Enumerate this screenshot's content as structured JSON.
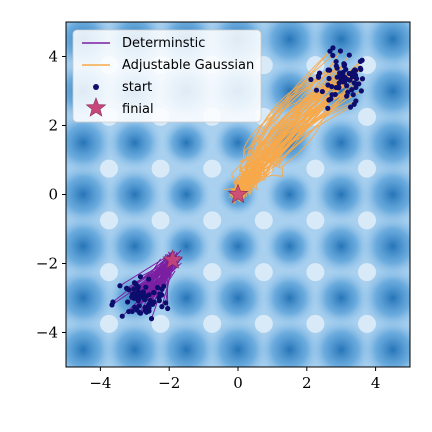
{
  "chart_data": {
    "type": "line",
    "title": "",
    "xlabel": "",
    "ylabel": "",
    "xlim": [
      -5,
      5
    ],
    "ylim": [
      -5,
      5
    ],
    "xticks": [
      -4,
      -2,
      0,
      2,
      4
    ],
    "yticks": [
      -4,
      -2,
      0,
      2,
      4
    ],
    "xtick_labels": [
      "−4",
      "−2",
      "0",
      "2",
      "4"
    ],
    "ytick_labels": [
      "−4",
      "−2",
      "0",
      "2",
      "4"
    ],
    "grid": false,
    "background": {
      "kind": "heatmap",
      "description_free": true,
      "pattern": "periodic wells",
      "well_spacing": 1.5,
      "colormap": [
        "#ffffff",
        "#1f6fb4"
      ]
    },
    "legend": {
      "position": "top-left",
      "entries": [
        {
          "label": "Determinstic",
          "marker": "line",
          "color": "#7b1fa2"
        },
        {
          "label": "Adjustable Gaussian",
          "marker": "line",
          "color": "#f7a94a"
        },
        {
          "label": "start",
          "marker": "dot",
          "color": "#0d0d6e"
        },
        {
          "label": "finial",
          "marker": "star",
          "color": "#c9467a"
        }
      ]
    },
    "series": [
      {
        "name": "Determinstic",
        "color": "#7b1fa2",
        "start_cluster_center": [
          -2.8,
          -3.0
        ],
        "end_point": [
          -1.9,
          -1.9
        ]
      },
      {
        "name": "Adjustable Gaussian",
        "color": "#f7a94a",
        "start_cluster_center": [
          3.0,
          3.3
        ],
        "end_point": [
          0.0,
          0.0
        ]
      },
      {
        "name": "start",
        "color": "#0d0d6e",
        "clusters": [
          [
            -2.8,
            -3.0
          ],
          [
            3.0,
            3.3
          ]
        ]
      },
      {
        "name": "finial",
        "color": "#c9467a",
        "points": [
          [
            0.0,
            0.0
          ],
          [
            -1.9,
            -1.9
          ]
        ]
      }
    ]
  }
}
